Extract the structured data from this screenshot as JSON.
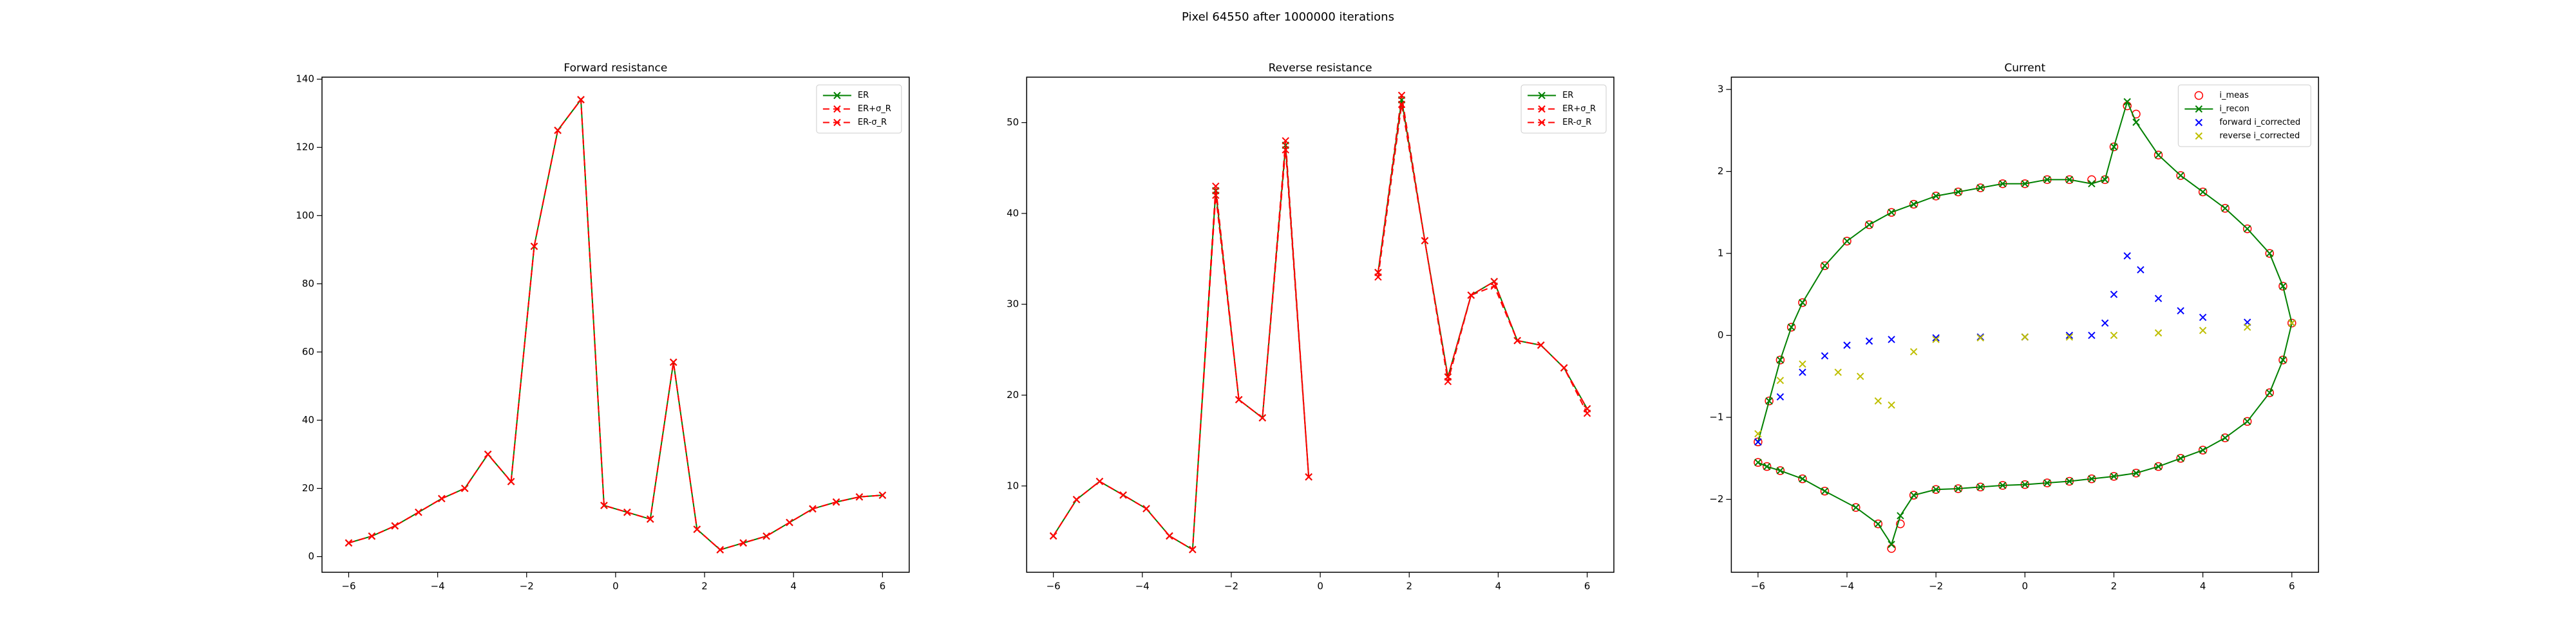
{
  "title": "Pixel 64550 after 1000000 iterations",
  "chart_data": [
    {
      "type": "line",
      "title": "Forward resistance",
      "x": [
        -6,
        -5.48,
        -4.96,
        -4.43,
        -3.91,
        -3.39,
        -2.87,
        -2.35,
        -1.83,
        -1.3,
        -0.78,
        -0.26,
        0.26,
        0.78,
        1.3,
        1.83,
        2.35,
        2.87,
        3.39,
        3.91,
        4.43,
        4.96,
        5.48,
        6
      ],
      "series": [
        {
          "name": "ER",
          "color": "#008000",
          "marker": "x",
          "linestyle": "solid",
          "values": [
            4,
            6,
            9,
            13,
            17,
            20,
            30,
            22,
            91,
            125,
            134,
            15,
            13,
            11,
            57,
            8,
            2,
            4,
            6,
            10,
            14,
            16,
            17.5,
            18
          ]
        },
        {
          "name": "ER+σ_R",
          "color": "#ff0000",
          "marker": "x",
          "linestyle": "dashed",
          "values": [
            4,
            6,
            9,
            13,
            17,
            20,
            30,
            22,
            91,
            125,
            134,
            15,
            13,
            11,
            57,
            8,
            2,
            4,
            6,
            10,
            14,
            16,
            17.5,
            18
          ]
        },
        {
          "name": "ER-σ_R",
          "color": "#ff0000",
          "marker": "x",
          "linestyle": "dashed",
          "values": [
            4,
            6,
            9,
            13,
            17,
            20,
            30,
            22,
            91,
            125,
            134,
            15,
            13,
            11,
            57,
            8,
            2,
            4,
            6,
            10,
            14,
            16,
            17.5,
            18
          ]
        }
      ],
      "xlim": [
        -6.6,
        6.6
      ],
      "xticks": [
        {
          "value": -6,
          "label": "−6"
        },
        {
          "value": -4,
          "label": "−4"
        },
        {
          "value": -2,
          "label": "−2"
        },
        0,
        2,
        4,
        6
      ],
      "ylim": [
        -4.6,
        140.6
      ],
      "yticks": [
        0,
        20,
        40,
        60,
        80,
        100,
        120,
        140
      ],
      "legend": "upper right"
    },
    {
      "type": "line",
      "title": "Reverse resistance",
      "x": [
        -6,
        -5.48,
        -4.96,
        -4.43,
        -3.91,
        -3.39,
        -2.87,
        -2.35,
        -1.83,
        -1.3,
        -0.78,
        -0.26,
        0.26,
        0.78,
        1.3,
        1.83,
        2.35,
        2.87,
        3.39,
        3.91,
        4.43,
        4.96,
        5.48,
        6
      ],
      "series": [
        {
          "name": "ER",
          "color": "#008000",
          "marker": "x",
          "linestyle": "solid",
          "values": [
            4.5,
            8.5,
            10.5,
            9,
            7.5,
            4.5,
            3,
            42.5,
            19.5,
            17.5,
            47.5,
            11,
            null,
            null,
            33.5,
            52.5,
            37,
            22,
            31,
            32.5,
            26,
            25.5,
            23,
            18.5
          ]
        },
        {
          "name": "ER+σ_R",
          "color": "#ff0000",
          "marker": "x",
          "linestyle": "dashed",
          "values": [
            4.5,
            8.5,
            10.5,
            9,
            7.5,
            4.5,
            3,
            43,
            19.5,
            17.5,
            48,
            11,
            null,
            null,
            33.5,
            53,
            37,
            22,
            31,
            32.5,
            26,
            25.5,
            23,
            18.5
          ]
        },
        {
          "name": "ER-σ_R",
          "color": "#ff0000",
          "marker": "x",
          "linestyle": "dashed",
          "values": [
            4.5,
            8.5,
            10.5,
            9,
            7.5,
            4.5,
            3,
            42,
            19.5,
            17.5,
            47,
            11,
            null,
            null,
            33,
            52,
            37,
            21.5,
            31,
            32,
            26,
            25.5,
            23,
            18
          ]
        }
      ],
      "xlim": [
        -6.6,
        6.6
      ],
      "xticks": [
        {
          "value": -6,
          "label": "−6"
        },
        {
          "value": -4,
          "label": "−4"
        },
        {
          "value": -2,
          "label": "−2"
        },
        0,
        2,
        4,
        6
      ],
      "ylim": [
        0.5,
        55
      ],
      "yticks": [
        10,
        20,
        30,
        40,
        50
      ],
      "legend": "upper right"
    },
    {
      "type": "line",
      "title": "Current",
      "series": [
        {
          "name": "i_meas",
          "color": "#ff0000",
          "marker": "o",
          "linestyle": "none",
          "x": [
            -6,
            -5.75,
            -5.5,
            -5.25,
            -5,
            -4.5,
            -4,
            -3.5,
            -3,
            -2.5,
            -2,
            -1.5,
            -1,
            -0.5,
            0,
            0.5,
            1,
            1.5,
            1.8,
            2,
            2.3,
            2.5,
            3,
            3.5,
            4,
            4.5,
            5,
            5.5,
            5.8,
            6,
            5.8,
            5.5,
            5,
            4.5,
            4,
            3.5,
            3,
            2.5,
            2,
            1.5,
            1,
            0.5,
            0,
            -0.5,
            -1,
            -1.5,
            -2,
            -2.5,
            -2.8,
            -3,
            -3.3,
            -3.8,
            -4.5,
            -5,
            -5.5,
            -5.8,
            -6
          ],
          "values": [
            -1.3,
            -0.8,
            -0.3,
            0.1,
            0.4,
            0.85,
            1.15,
            1.35,
            1.5,
            1.6,
            1.7,
            1.75,
            1.8,
            1.85,
            1.85,
            1.9,
            1.9,
            1.9,
            1.9,
            2.3,
            2.8,
            2.7,
            2.2,
            1.95,
            1.75,
            1.55,
            1.3,
            1.0,
            0.6,
            0.15,
            -0.3,
            -0.7,
            -1.05,
            -1.25,
            -1.4,
            -1.5,
            -1.6,
            -1.68,
            -1.72,
            -1.75,
            -1.78,
            -1.8,
            -1.82,
            -1.83,
            -1.85,
            -1.87,
            -1.88,
            -1.95,
            -2.3,
            -2.6,
            -2.3,
            -2.1,
            -1.9,
            -1.75,
            -1.65,
            -1.6,
            -1.55
          ]
        },
        {
          "name": "i_recon",
          "color": "#008000",
          "marker": "x",
          "linestyle": "solid",
          "x": [
            -6,
            -5.75,
            -5.5,
            -5.25,
            -5,
            -4.5,
            -4,
            -3.5,
            -3,
            -2.5,
            -2,
            -1.5,
            -1,
            -0.5,
            0,
            0.5,
            1,
            1.5,
            1.8,
            2,
            2.3,
            2.5,
            3,
            3.5,
            4,
            4.5,
            5,
            5.5,
            5.8,
            6,
            5.8,
            5.5,
            5,
            4.5,
            4,
            3.5,
            3,
            2.5,
            2,
            1.5,
            1,
            0.5,
            0,
            -0.5,
            -1,
            -1.5,
            -2,
            -2.5,
            -2.8,
            -3,
            -3.3,
            -3.8,
            -4.5,
            -5,
            -5.5,
            -5.8,
            -6
          ],
          "values": [
            -1.3,
            -0.8,
            -0.3,
            0.1,
            0.4,
            0.85,
            1.15,
            1.35,
            1.5,
            1.6,
            1.7,
            1.75,
            1.8,
            1.85,
            1.85,
            1.9,
            1.9,
            1.85,
            1.9,
            2.3,
            2.85,
            2.6,
            2.2,
            1.95,
            1.75,
            1.55,
            1.3,
            1.0,
            0.6,
            0.15,
            -0.3,
            -0.7,
            -1.05,
            -1.25,
            -1.4,
            -1.5,
            -1.6,
            -1.68,
            -1.72,
            -1.75,
            -1.78,
            -1.8,
            -1.82,
            -1.83,
            -1.85,
            -1.87,
            -1.88,
            -1.95,
            -2.2,
            -2.55,
            -2.3,
            -2.1,
            -1.9,
            -1.75,
            -1.65,
            -1.6,
            -1.55
          ]
        },
        {
          "name": "forward i_corrected",
          "color": "#0000ff",
          "marker": "x",
          "linestyle": "none",
          "x": [
            -6,
            -5.5,
            -5,
            -4.5,
            -4,
            -3.5,
            -3,
            -2,
            -1,
            0,
            1,
            1.5,
            1.8,
            2,
            2.3,
            2.6,
            3,
            3.5,
            4,
            5,
            6
          ],
          "values": [
            -1.3,
            -0.75,
            -0.45,
            -0.25,
            -0.12,
            -0.07,
            -0.05,
            -0.03,
            -0.02,
            -0.02,
            0,
            0,
            0.15,
            0.5,
            0.97,
            0.8,
            0.45,
            0.3,
            0.22,
            0.16,
            0.15
          ]
        },
        {
          "name": "reverse i_corrected",
          "color": "#bfbf00",
          "marker": "x",
          "linestyle": "none",
          "x": [
            6,
            5,
            4,
            3,
            2,
            1,
            0,
            -1,
            -2,
            -2.5,
            -3,
            -3.3,
            -3.7,
            -4.2,
            -5,
            -5.5,
            -6
          ],
          "values": [
            0.15,
            0.1,
            0.06,
            0.03,
            0,
            -0.02,
            -0.02,
            -0.03,
            -0.05,
            -0.2,
            -0.85,
            -0.8,
            -0.5,
            -0.45,
            -0.35,
            -0.55,
            -1.2
          ]
        }
      ],
      "xlim": [
        -6.6,
        6.6
      ],
      "xticks": [
        {
          "value": -6,
          "label": "−6"
        },
        {
          "value": -4,
          "label": "−4"
        },
        {
          "value": -2,
          "label": "−2"
        },
        0,
        2,
        4,
        6
      ],
      "ylim": [
        -2.89,
        3.15
      ],
      "yticks": [
        {
          "value": -2,
          "label": "−2"
        },
        {
          "value": -1,
          "label": "−1"
        },
        0,
        1,
        2,
        3
      ],
      "legend": "upper right"
    }
  ]
}
